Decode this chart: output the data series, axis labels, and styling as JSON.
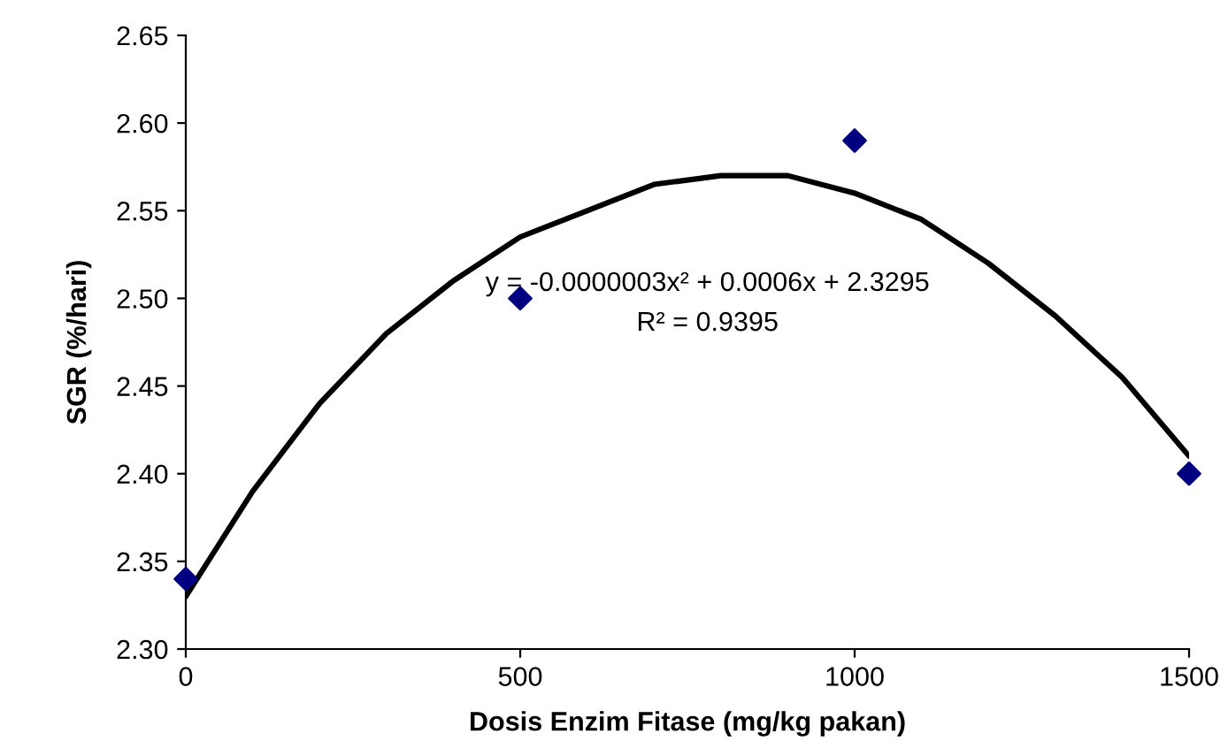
{
  "chart_data": {
    "type": "scatter",
    "xlabel": "Dosis Enzim Fitase (mg/kg pakan)",
    "ylabel": "SGR (%/hari)",
    "xlim": [
      0,
      1500
    ],
    "xticks": [
      0,
      500,
      1000,
      1500
    ],
    "ylim": [
      2.3,
      2.65
    ],
    "yticks": [
      {
        "value": 2.3,
        "label": "2.30"
      },
      {
        "value": 2.35,
        "label": "2.35"
      },
      {
        "value": 2.4,
        "label": "2.40"
      },
      {
        "value": 2.45,
        "label": "2.45"
      },
      {
        "value": 2.5,
        "label": "2.50"
      },
      {
        "value": 2.55,
        "label": "2.55"
      },
      {
        "value": 2.6,
        "label": "2.60"
      },
      {
        "value": 2.65,
        "label": "2.65"
      }
    ],
    "grid": false,
    "legend": false,
    "series": [
      {
        "marker": "diamond",
        "color": "#000080",
        "x": [
          0,
          500,
          1000,
          1500
        ],
        "values": [
          2.34,
          2.5,
          2.59,
          2.4
        ]
      },
      {
        "type": "line",
        "marker": "none",
        "line_style": "solid",
        "color": "#000000",
        "x": [
          0,
          100,
          200,
          300,
          400,
          500,
          600,
          700,
          800,
          900,
          1000,
          1100,
          1200,
          1300,
          1400,
          1500
        ],
        "values": [
          2.33,
          2.39,
          2.44,
          2.48,
          2.51,
          2.535,
          2.55,
          2.565,
          2.57,
          2.57,
          2.56,
          2.545,
          2.52,
          2.49,
          2.455,
          2.41
        ]
      }
    ],
    "annotations": [
      "y = -0.0000003x² + 0.0006x + 2.3295",
      "R² = 0.9395"
    ]
  }
}
